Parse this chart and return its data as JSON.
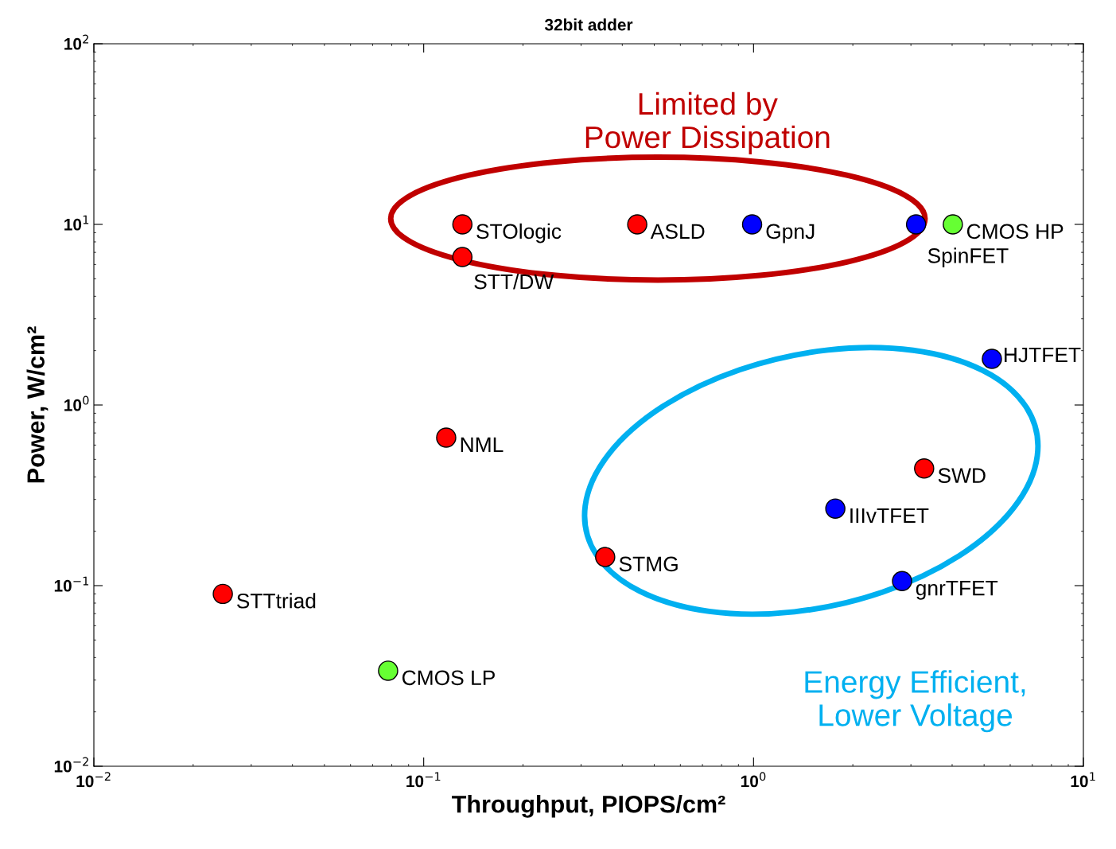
{
  "chart_data": {
    "type": "scatter",
    "title": "32bit adder",
    "xlabel": "Throughput, PIOPS/cm²",
    "ylabel": "Power, W/cm²",
    "log": "xy",
    "xlim": [
      0.01,
      10
    ],
    "ylim": [
      0.01,
      100
    ],
    "xticks": [
      {
        "value": 0.01,
        "label": "10$^{−2}$"
      },
      {
        "value": 0.1,
        "label": "10$^{−1}$"
      },
      {
        "value": 1,
        "label": "10$^{0}$"
      },
      {
        "value": 10,
        "label": "10$^{1}$"
      }
    ],
    "yticks": [
      {
        "value": 0.01,
        "label": "10$^{−2}$"
      },
      {
        "value": 0.1,
        "label": "10$^{−1}$"
      },
      {
        "value": 1,
        "label": "10$^{0}$"
      },
      {
        "value": 10,
        "label": "10$^{1}$"
      },
      {
        "value": 100,
        "label": "10$^{2}$"
      }
    ],
    "marker": "circle",
    "grid": false,
    "legend": false,
    "series": [
      {
        "color": "#ff0000",
        "x": [
          0.131,
          0.131,
          0.444,
          0.117,
          3.29,
          0.355,
          0.0246
        ],
        "values": [
          10,
          6.6,
          10,
          0.66,
          0.445,
          0.144,
          0.09
        ]
      },
      {
        "color": "#0000ff",
        "x": [
          0.99,
          3.11,
          5.28,
          1.77,
          2.82
        ],
        "values": [
          10,
          10,
          1.8,
          0.267,
          0.106
        ]
      },
      {
        "color": "#66ff33",
        "x": [
          4.02,
          0.078
        ],
        "values": [
          10,
          0.0338
        ]
      }
    ],
    "annotations": [
      {
        "text": "STOlogic",
        "x": 0.131,
        "y": 10
      },
      {
        "text": "STT/DW",
        "x": 0.131,
        "y": 6.6
      },
      {
        "text": "ASLD",
        "x": 0.444,
        "y": 10
      },
      {
        "text": "NML",
        "x": 0.117,
        "y": 0.66
      },
      {
        "text": "SWD",
        "x": 3.29,
        "y": 0.445
      },
      {
        "text": "STMG",
        "x": 0.355,
        "y": 0.144
      },
      {
        "text": "STTtriad",
        "x": 0.0246,
        "y": 0.09
      },
      {
        "text": "GpnJ",
        "x": 0.99,
        "y": 10
      },
      {
        "text": "SpinFET",
        "x": 3.11,
        "y": 10
      },
      {
        "text": "HJTFET",
        "x": 5.28,
        "y": 1.8
      },
      {
        "text": "IIIvTFET",
        "x": 1.77,
        "y": 0.267
      },
      {
        "text": "gnrTFET",
        "x": 2.82,
        "y": 0.106
      },
      {
        "text": "CMOS HP",
        "x": 4.02,
        "y": 10
      },
      {
        "text": "CMOS LP",
        "x": 0.078,
        "y": 0.0338
      },
      "Limited by\nPower Dissipation",
      "Energy Efficient,\nLower Voltage"
    ]
  }
}
